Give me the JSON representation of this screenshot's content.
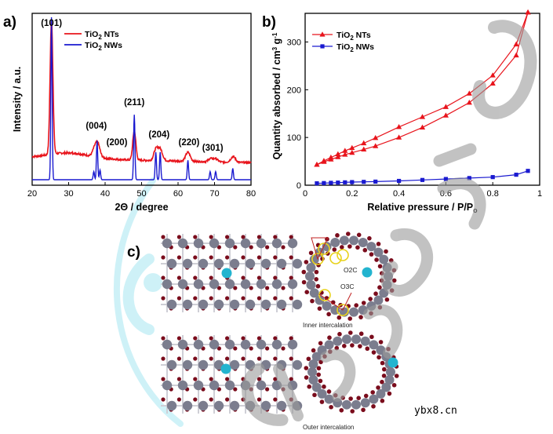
{
  "colors": {
    "nt": "#e8141c",
    "nw": "#1a1ad0",
    "cyan_watermark": "#a7e7f2",
    "gray_watermark": "#9b9b9b",
    "ti": "#7b7d8e",
    "o": "#7a0c1c",
    "ion": "#23b4cf"
  },
  "panels": {
    "a": "a)",
    "b": "b)",
    "c": "c)"
  },
  "chart_data": [
    {
      "type": "line",
      "title": "",
      "xlabel": "2Θ / degree",
      "ylabel": "Intensity / a.u.",
      "xlim": [
        20,
        80
      ],
      "xticks": [
        20,
        30,
        40,
        50,
        60,
        70,
        80
      ],
      "legend": [
        {
          "label": "TiO",
          "sub": "2",
          "suffix": " NTs",
          "color": "#e8141c"
        },
        {
          "label": "TiO",
          "sub": "2",
          "suffix": " NWs",
          "color": "#1a1ad0"
        }
      ],
      "legend_position": "top-right",
      "peak_labels": [
        {
          "x": 25.3,
          "label": "(101)"
        },
        {
          "x": 37.8,
          "label": "(004)"
        },
        {
          "x": 42.8,
          "label": "(200)"
        },
        {
          "x": 48.0,
          "label": "(211)"
        },
        {
          "x": 54.8,
          "label": "(204)"
        },
        {
          "x": 63.0,
          "label": "(220)"
        },
        {
          "x": 69.5,
          "label": "(301)"
        }
      ],
      "series": [
        {
          "name": "TiO2 NTs",
          "color": "#e8141c",
          "baseline": 0.135,
          "noise": 0.011,
          "peaks": [
            {
              "x": 25.3,
              "h": 0.82,
              "w": 0.55
            },
            {
              "x": 36.9,
              "h": 0.03,
              "w": 0.7
            },
            {
              "x": 37.9,
              "h": 0.09,
              "w": 0.9
            },
            {
              "x": 48.0,
              "h": 0.18,
              "w": 0.6
            },
            {
              "x": 53.9,
              "h": 0.065,
              "w": 0.8
            },
            {
              "x": 55.1,
              "h": 0.07,
              "w": 0.9
            },
            {
              "x": 62.7,
              "h": 0.055,
              "w": 0.9
            },
            {
              "x": 68.9,
              "h": 0.02,
              "w": 0.8
            },
            {
              "x": 70.3,
              "h": 0.02,
              "w": 0.8
            },
            {
              "x": 75.1,
              "h": 0.035,
              "w": 0.9
            }
          ]
        },
        {
          "name": "TiO2 NWs",
          "color": "#1a1ad0",
          "baseline": 0.0,
          "noise": 0.0,
          "peaks": [
            {
              "x": 25.3,
              "h": 1.0,
              "w": 0.25
            },
            {
              "x": 36.9,
              "h": 0.05,
              "w": 0.25
            },
            {
              "x": 37.8,
              "h": 0.24,
              "w": 0.25
            },
            {
              "x": 38.6,
              "h": 0.06,
              "w": 0.25
            },
            {
              "x": 48.0,
              "h": 0.4,
              "w": 0.25
            },
            {
              "x": 53.9,
              "h": 0.17,
              "w": 0.25
            },
            {
              "x": 55.1,
              "h": 0.17,
              "w": 0.25
            },
            {
              "x": 62.7,
              "h": 0.12,
              "w": 0.25
            },
            {
              "x": 68.8,
              "h": 0.05,
              "w": 0.25
            },
            {
              "x": 70.3,
              "h": 0.05,
              "w": 0.25
            },
            {
              "x": 75.0,
              "h": 0.07,
              "w": 0.25
            }
          ]
        }
      ]
    },
    {
      "type": "line",
      "title": "",
      "xlabel": "Relative pressure / P/P",
      "xlabel_sub": "o",
      "ylabel": "Quantity absorbed / cm",
      "ylabel_sup1": "3",
      "ylabel_mid": " g",
      "ylabel_sup2": "-1",
      "xlim": [
        0.0,
        1.0
      ],
      "ylim": [
        0,
        360
      ],
      "xticks": [
        0.0,
        0.2,
        0.4,
        0.6,
        0.8,
        1.0
      ],
      "yticks": [
        0,
        100,
        200,
        300
      ],
      "legend": [
        {
          "label": "TiO",
          "sub": "2",
          "suffix": " NTs",
          "color": "#e8141c",
          "marker": "triangle"
        },
        {
          "label": "TiO",
          "sub": "2",
          "suffix": " NWs",
          "color": "#1a1ad0",
          "marker": "square"
        }
      ],
      "legend_position": "top-left",
      "series": [
        {
          "name": "TiO2 NTs adsorption",
          "color": "#e8141c",
          "marker": "triangle",
          "x": [
            0.05,
            0.08,
            0.11,
            0.14,
            0.17,
            0.2,
            0.25,
            0.3,
            0.4,
            0.5,
            0.6,
            0.7,
            0.8,
            0.9,
            0.95
          ],
          "y": [
            43,
            49,
            54,
            59,
            64,
            68,
            75,
            82,
            100,
            121,
            146,
            173,
            213,
            272,
            362
          ]
        },
        {
          "name": "TiO2 NTs desorption",
          "color": "#e8141c",
          "marker": "triangle",
          "x": [
            0.95,
            0.9,
            0.8,
            0.7,
            0.6,
            0.5,
            0.4,
            0.3,
            0.25,
            0.2,
            0.17,
            0.14,
            0.11,
            0.08,
            0.05
          ],
          "y": [
            362,
            295,
            230,
            192,
            164,
            143,
            122,
            99,
            88,
            78,
            72,
            65,
            58,
            51,
            43
          ]
        },
        {
          "name": "TiO2 NWs",
          "color": "#1a1ad0",
          "marker": "square",
          "x": [
            0.05,
            0.08,
            0.11,
            0.14,
            0.17,
            0.2,
            0.25,
            0.3,
            0.4,
            0.5,
            0.6,
            0.7,
            0.8,
            0.9,
            0.95
          ],
          "y": [
            4,
            4.5,
            5,
            5.5,
            6,
            6.5,
            7,
            7.5,
            9,
            11,
            13,
            15,
            17,
            22,
            30
          ]
        }
      ]
    }
  ],
  "panel_c": {
    "inner_label": "Inner intercalation",
    "outer_label": "Outer intercalation",
    "site_o2c": "O2C",
    "site_o3c": "O3C"
  },
  "watermark": {
    "text": "ybx8.cn"
  }
}
